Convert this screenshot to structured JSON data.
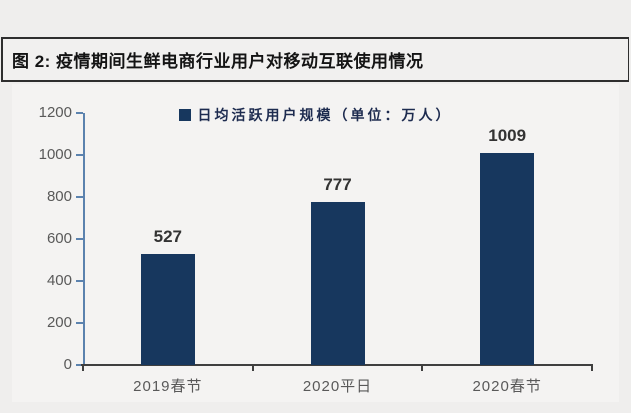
{
  "page": {
    "background": "#efeeed"
  },
  "figure_header": {
    "text": "图 2:  疫情期间生鲜电商行业用户对移动互联使用情况"
  },
  "chart_data": {
    "type": "bar",
    "title": "",
    "legend": "日均活跃用户规模（单位：万人）",
    "legend_position": "top-center",
    "categories": [
      "2019春节",
      "2020平日",
      "2020春节"
    ],
    "values": [
      527,
      777,
      1009
    ],
    "xlabel": "",
    "ylabel": "",
    "ylim": [
      0,
      1200
    ],
    "yticks": [
      0,
      200,
      400,
      600,
      800,
      1000,
      1200
    ],
    "grid": false,
    "colors": {
      "bar": "#17375e",
      "legend_text": "#1d2b4f",
      "y_axis_line": "#5b82ae",
      "tick_label_text": "#595959",
      "x_axis_line": "#3f3f3f",
      "value_label_text": "#333333"
    }
  }
}
